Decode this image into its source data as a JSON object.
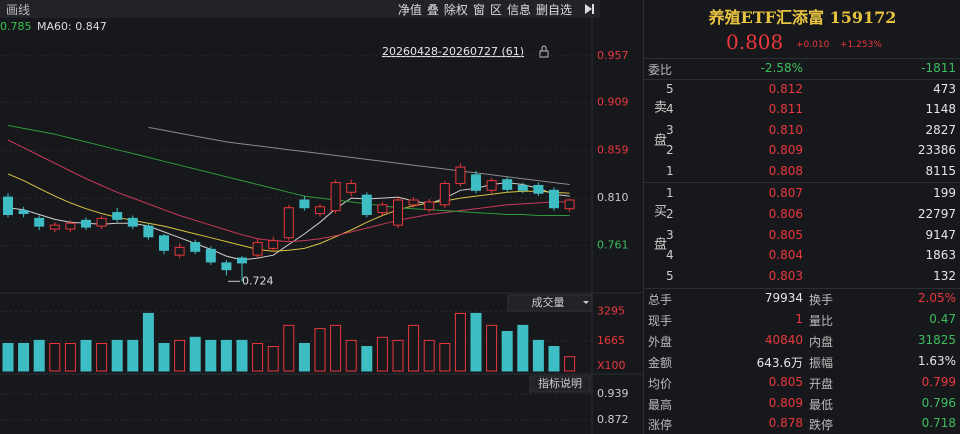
{
  "toolbar": {
    "left": "画线",
    "buttons": [
      "净值",
      "叠",
      "除权",
      "窗",
      "区",
      "信息",
      "删自选"
    ]
  },
  "chart_data": [
    {
      "type": "candlestick",
      "legend": [
        {
          "text": "0.785",
          "color": "#35c24a"
        },
        {
          "text": "MA60: 0.847",
          "color": "#dddddd"
        }
      ],
      "range_label": "20260428-20260727 (61)",
      "min_label": 0.724,
      "up_color": "#e8383d",
      "down_color": "#3fbdc4",
      "open": [
        0.811,
        0.797,
        0.789,
        0.778,
        0.778,
        0.787,
        0.781,
        0.795,
        0.789,
        0.781,
        0.771,
        0.751,
        0.764,
        0.757,
        0.743,
        0.748,
        0.751,
        0.758,
        0.769,
        0.808,
        0.794,
        0.797,
        0.816,
        0.813,
        0.795,
        0.782,
        0.803,
        0.798,
        0.803,
        0.825,
        0.834,
        0.818,
        0.829,
        0.823,
        0.823,
        0.818,
        0.799
      ],
      "high": [
        0.815,
        0.801,
        0.792,
        0.785,
        0.787,
        0.79,
        0.792,
        0.8,
        0.792,
        0.784,
        0.773,
        0.763,
        0.767,
        0.76,
        0.746,
        0.75,
        0.768,
        0.77,
        0.803,
        0.812,
        0.804,
        0.829,
        0.829,
        0.816,
        0.806,
        0.812,
        0.811,
        0.809,
        0.828,
        0.846,
        0.838,
        0.831,
        0.832,
        0.826,
        0.826,
        0.821,
        0.809
      ],
      "low": [
        0.79,
        0.79,
        0.777,
        0.775,
        0.775,
        0.777,
        0.778,
        0.785,
        0.778,
        0.767,
        0.752,
        0.748,
        0.752,
        0.741,
        0.73,
        0.724,
        0.748,
        0.755,
        0.766,
        0.797,
        0.791,
        0.794,
        0.812,
        0.79,
        0.792,
        0.779,
        0.8,
        0.795,
        0.8,
        0.822,
        0.815,
        0.815,
        0.816,
        0.815,
        0.812,
        0.797,
        0.796
      ],
      "close": [
        0.793,
        0.794,
        0.781,
        0.782,
        0.784,
        0.78,
        0.789,
        0.788,
        0.781,
        0.77,
        0.756,
        0.759,
        0.755,
        0.744,
        0.736,
        0.743,
        0.764,
        0.766,
        0.8,
        0.8,
        0.801,
        0.826,
        0.825,
        0.793,
        0.803,
        0.808,
        0.808,
        0.806,
        0.825,
        0.842,
        0.818,
        0.828,
        0.819,
        0.818,
        0.815,
        0.8,
        0.808
      ],
      "lines": [
        {
          "color": "#d0d0d0",
          "values": [
            0.8,
            0.798,
            0.793,
            0.788,
            0.785,
            0.784,
            0.783,
            0.784,
            0.784,
            0.781,
            0.775,
            0.769,
            0.763,
            0.757,
            0.75,
            0.746,
            0.748,
            0.751,
            0.762,
            0.773,
            0.785,
            0.799,
            0.81,
            0.809,
            0.81,
            0.811,
            0.807,
            0.804,
            0.81,
            0.818,
            0.82,
            0.824,
            0.826,
            0.824,
            0.82,
            0.814,
            0.812
          ]
        },
        {
          "color": "#d8c341",
          "values": [
            0.835,
            0.828,
            0.82,
            0.812,
            0.805,
            0.799,
            0.794,
            0.79,
            0.787,
            0.784,
            0.781,
            0.777,
            0.773,
            0.769,
            0.765,
            0.761,
            0.757,
            0.755,
            0.756,
            0.758,
            0.763,
            0.77,
            0.777,
            0.785,
            0.792,
            0.798,
            0.802,
            0.805,
            0.807,
            0.81,
            0.812,
            0.814,
            0.816,
            0.817,
            0.817,
            0.816,
            0.815
          ]
        },
        {
          "color": "#c8385a",
          "values": [
            0.87,
            0.862,
            0.854,
            0.846,
            0.838,
            0.83,
            0.823,
            0.816,
            0.81,
            0.804,
            0.798,
            0.792,
            0.787,
            0.782,
            0.777,
            0.772,
            0.768,
            0.766,
            0.765,
            0.766,
            0.768,
            0.771,
            0.775,
            0.779,
            0.783,
            0.787,
            0.79,
            0.793,
            0.795,
            0.797,
            0.799,
            0.801,
            0.803,
            0.804,
            0.805,
            0.806,
            0.806
          ]
        },
        {
          "color": "#2f9a3c",
          "values": [
            0.885,
            0.882,
            0.879,
            0.876,
            0.872,
            0.868,
            0.864,
            0.86,
            0.856,
            0.852,
            0.848,
            0.844,
            0.84,
            0.836,
            0.832,
            0.828,
            0.824,
            0.82,
            0.816,
            0.812,
            0.81,
            0.808,
            0.806,
            0.804,
            0.802,
            0.8,
            0.799,
            0.798,
            0.797,
            0.796,
            0.795,
            0.794,
            0.793,
            0.793,
            0.792,
            0.792,
            0.792
          ]
        },
        {
          "color": "#8a8a8a",
          "values": [
            null,
            null,
            null,
            null,
            null,
            null,
            null,
            null,
            null,
            0.883,
            0.88,
            0.877,
            0.874,
            0.871,
            0.868,
            0.866,
            0.864,
            0.862,
            0.86,
            0.858,
            0.856,
            0.854,
            0.852,
            0.85,
            0.848,
            0.846,
            0.844,
            0.842,
            0.84,
            0.838,
            0.836,
            0.834,
            0.832,
            0.83,
            0.828,
            0.826,
            0.824
          ]
        }
      ],
      "ylim": [
        0.715,
        0.994
      ],
      "yticks": [
        0.957,
        0.909,
        0.859,
        {
          "value": 0.81,
          "label": "0.810"
        },
        0.761
      ],
      "tick_colors": [
        "#e8383d",
        "#e8383d",
        "#e8383d",
        "#cccccc",
        "#3dbd5d"
      ]
    },
    {
      "type": "bar",
      "title": "成交量",
      "unit_label": "X100",
      "values": [
        1520,
        1520,
        1690,
        1520,
        1520,
        1690,
        1520,
        1690,
        1690,
        3180,
        1520,
        1690,
        1860,
        1690,
        1690,
        1690,
        1520,
        1350,
        2520,
        1520,
        2350,
        2520,
        1690,
        1350,
        1860,
        1690,
        2520,
        1690,
        1520,
        3180,
        3180,
        2520,
        2180,
        2520,
        1690,
        1350,
        790
      ],
      "ylim": [
        0,
        3920
      ],
      "yticks": [
        3295,
        1665
      ],
      "tick_colors": [
        "#e8383d",
        "#e8383d"
      ]
    },
    {
      "type": "indicator",
      "button": "指标说明",
      "ylim": [
        0.836,
        0.98
      ],
      "yticks": [
        0.939,
        0.872
      ],
      "tick_colors": [
        "#cccccc",
        "#cccccc"
      ]
    }
  ],
  "quote": {
    "name": "养殖ETF汇添富 159172",
    "price": "0.808",
    "change": "+0.010",
    "change_pct": "+1.253%",
    "ratio_label": "委比",
    "ratio_pct": "-2.58%",
    "ratio_diff": "-1811",
    "ask_side": "卖盘",
    "bid_side": "买盘",
    "asks": [
      {
        "level": "5",
        "price": "0.812",
        "volume": "473"
      },
      {
        "level": "4",
        "price": "0.811",
        "volume": "1148"
      },
      {
        "level": "3",
        "price": "0.810",
        "volume": "2827"
      },
      {
        "level": "2",
        "price": "0.809",
        "volume": "23386"
      },
      {
        "level": "1",
        "price": "0.808",
        "volume": "8115"
      }
    ],
    "bids": [
      {
        "level": "1",
        "price": "0.807",
        "volume": "199"
      },
      {
        "level": "2",
        "price": "0.806",
        "volume": "22797"
      },
      {
        "level": "3",
        "price": "0.805",
        "volume": "9147"
      },
      {
        "level": "4",
        "price": "0.804",
        "volume": "1863"
      },
      {
        "level": "5",
        "price": "0.803",
        "volume": "132"
      }
    ],
    "stats": [
      [
        "总手",
        "79934",
        "换手",
        "2.05%"
      ],
      [
        "现手",
        "1",
        "量比",
        "0.47"
      ],
      [
        "外盘",
        "40840",
        "内盘",
        "31825"
      ],
      [
        "金额",
        "643.6万",
        "振幅",
        "1.63%"
      ],
      [
        "均价",
        "0.805",
        "开盘",
        "0.799"
      ],
      [
        "最高",
        "0.809",
        "最低",
        "0.796"
      ],
      [
        "涨停",
        "0.878",
        "跌停",
        "0.718"
      ]
    ]
  }
}
